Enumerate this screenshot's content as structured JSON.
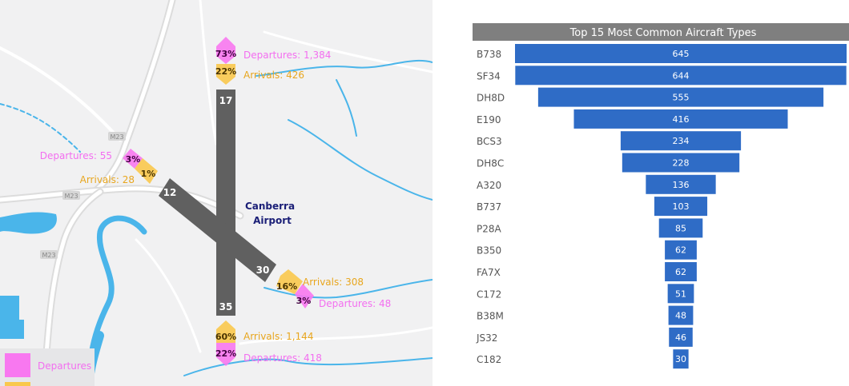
{
  "map": {
    "airport_label": [
      "Canberra",
      "Airport"
    ],
    "road_labels": [
      "M23",
      "M23",
      "M23"
    ],
    "runways": [
      {
        "id": "17",
        "arrivals_pct": "22%",
        "departures_pct": "73%",
        "arrivals_text": "Arrivals: 426",
        "departures_text": "Departures: 1,384"
      },
      {
        "id": "12",
        "arrivals_pct": "1%",
        "departures_pct": "3%",
        "arrivals_text": "Arrivals: 28",
        "departures_text": "Departures: 55"
      },
      {
        "id": "30",
        "arrivals_pct": "16%",
        "departures_pct": "3%",
        "arrivals_text": "Arrivals: 308",
        "departures_text": "Departures: 48"
      },
      {
        "id": "35",
        "arrivals_pct": "60%",
        "departures_pct": "22%",
        "arrivals_text": "Arrivals: 1,144",
        "departures_text": "Departures: 418"
      }
    ],
    "legend": {
      "departures": "Departures",
      "departures_color": "#f878f0",
      "arrivals_color": "#f9c84c"
    },
    "colors": {
      "departures": "#f36ef0",
      "arrivals": "#e8a61e",
      "runway": "#606060",
      "water": "#4ab5ea",
      "airport_label": "#1b1f77"
    }
  },
  "chart_data": {
    "type": "bar",
    "title": "Top 15 Most Common Aircraft Types",
    "categories": [
      "B738",
      "SF34",
      "DH8D",
      "E190",
      "BCS3",
      "DH8C",
      "A320",
      "B737",
      "P28A",
      "B350",
      "FA7X",
      "C172",
      "B38M",
      "JS32",
      "C182"
    ],
    "values": [
      645,
      644,
      555,
      416,
      234,
      228,
      136,
      103,
      85,
      62,
      62,
      51,
      48,
      46,
      30
    ],
    "bar_color": "#2f6cc6",
    "header_color": "#7f7f7f"
  }
}
